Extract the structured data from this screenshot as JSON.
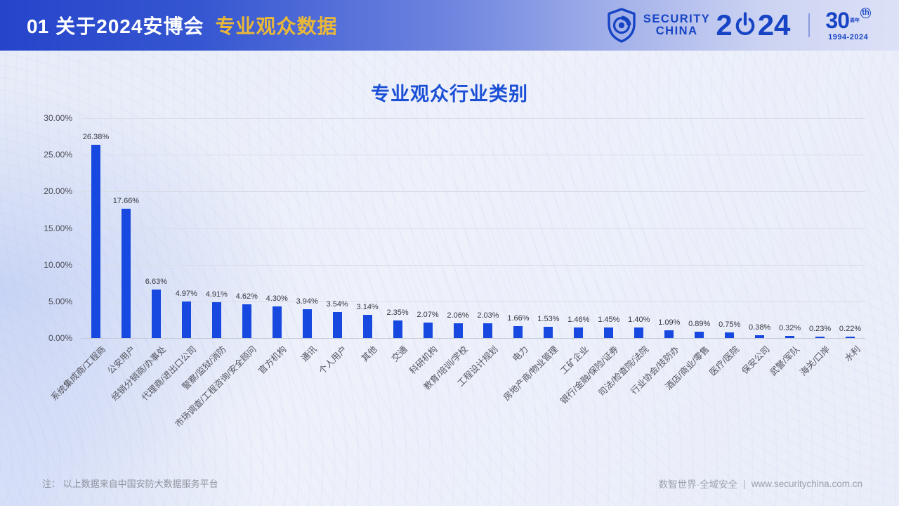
{
  "header": {
    "slide_number": "01",
    "title": "关于2024安博会",
    "subtitle": "专业观众数据",
    "logo": {
      "brand_line1": "SECURITY",
      "brand_line2": "CHINA",
      "year_prefix": "2",
      "year_suffix": "24",
      "anniversary_number": "30",
      "anniversary_zhounian": "周年",
      "anniversary_sup": "th",
      "anniversary_years": "1994-2024"
    }
  },
  "chart_data": {
    "type": "bar",
    "title": "专业观众行业类别",
    "categories": [
      "系统集成商/工程商",
      "公安用户",
      "经销分销商/办事处",
      "代理商/进出口公司",
      "警察/监狱/消防",
      "市场调查/工程咨询/安全顾问",
      "官方机构",
      "通讯",
      "个人用户",
      "其他",
      "交通",
      "科研机构",
      "教育/培训/学校",
      "工程设计规划",
      "电力",
      "房地产商/物业管理",
      "工矿企业",
      "银行/金融/保险/证券",
      "司法/检查院/法院",
      "行业协会/技防办",
      "酒店/商业/零售",
      "医疗/医院",
      "保安公司",
      "武警/军队",
      "海关/口岸",
      "水利"
    ],
    "values": [
      26.38,
      17.66,
      6.63,
      4.97,
      4.91,
      4.62,
      4.3,
      3.94,
      3.54,
      3.14,
      2.35,
      2.07,
      2.06,
      2.03,
      1.66,
      1.53,
      1.46,
      1.45,
      1.4,
      1.09,
      0.89,
      0.75,
      0.38,
      0.32,
      0.23,
      0.22
    ],
    "value_labels": [
      "26.38%",
      "17.66%",
      "6.63%",
      "4.97%",
      "4.91%",
      "4.62%",
      "4.30%",
      "3.94%",
      "3.54%",
      "3.14%",
      "2.35%",
      "2.07%",
      "2.06%",
      "2.03%",
      "1.66%",
      "1.53%",
      "1.46%",
      "1.45%",
      "1.40%",
      "1.09%",
      "0.89%",
      "0.75%",
      "0.38%",
      "0.32%",
      "0.23%",
      "0.22%"
    ],
    "ylim": [
      0,
      30
    ],
    "ytick_values": [
      30,
      25,
      20,
      15,
      10,
      5,
      0
    ],
    "ytick_labels": [
      "30.00%",
      "25.00%",
      "20.00%",
      "15.00%",
      "10.00%",
      "5.00%",
      "0.00%"
    ],
    "grid": true,
    "legend": null,
    "xlabel": "",
    "ylabel": "",
    "label_rotation_deg": 45,
    "bar_color": "#1748e0"
  },
  "footer": {
    "note": "注： 以上数据来自中国安防大数据服务平台",
    "slogan": "数智世界·全域安全",
    "separator": "|",
    "website": "www.securitychina.com.cn"
  },
  "colors": {
    "header_gradient_start": "#2644ca",
    "header_gradient_end": "#dde1f7",
    "header_title": "#ffffff",
    "header_subtitle": "#e9b838",
    "logo_blue": "#1644c4",
    "chart_title": "#1b50d6",
    "bar": "#1748e0",
    "gridline": "#dadde8",
    "axis_text": "#4b4c55",
    "background": "#eef1fa"
  }
}
